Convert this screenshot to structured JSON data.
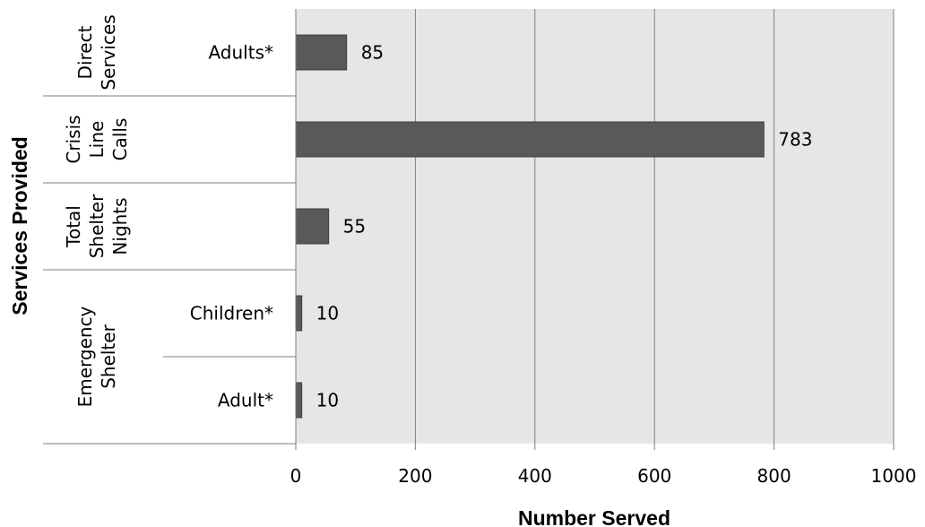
{
  "chart_data": {
    "type": "bar",
    "orientation": "horizontal",
    "xlabel": "Number Served",
    "ylabel": "Services Provided",
    "xlim": [
      0,
      1000
    ],
    "xticks": [
      "0",
      "200",
      "400",
      "600",
      "800",
      "1000"
    ],
    "grid": true,
    "legend": "none",
    "bar_color": "#595959",
    "plot_background": "#e6e6e6",
    "rows": [
      {
        "group": [
          "Direct",
          "Services"
        ],
        "category": "Adults*",
        "value": 85,
        "label": "85"
      },
      {
        "group": [
          "Crisis",
          "Line",
          "Calls"
        ],
        "category": "",
        "value": 783,
        "label": "783"
      },
      {
        "group": [
          "Total",
          "Shelter",
          "Nights"
        ],
        "category": "",
        "value": 55,
        "label": "55"
      },
      {
        "group": [
          "Emergency",
          "Shelter"
        ],
        "category": "Children*",
        "value": 10,
        "label": "10"
      },
      {
        "group": [
          "Emergency",
          "Shelter"
        ],
        "category": "Adult*",
        "value": 10,
        "label": "10"
      }
    ]
  }
}
